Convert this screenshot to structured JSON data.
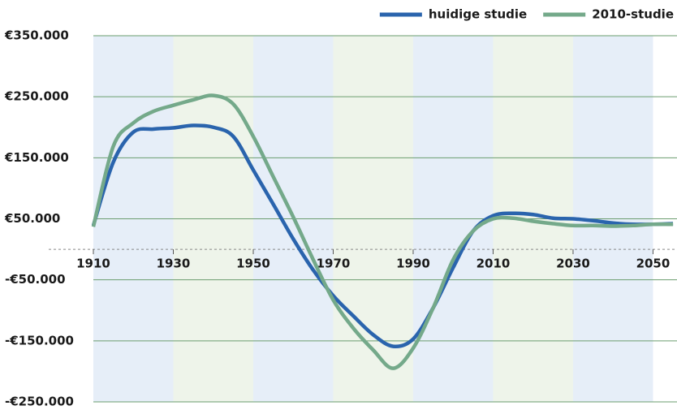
{
  "chart_data": {
    "type": "line",
    "x": [
      1910,
      1915,
      1920,
      1925,
      1930,
      1935,
      1940,
      1945,
      1950,
      1955,
      1960,
      1965,
      1970,
      1975,
      1980,
      1985,
      1990,
      1995,
      2000,
      2005,
      2010,
      2015,
      2020,
      2025,
      2030,
      2035,
      2040,
      2045,
      2050,
      2055
    ],
    "series": [
      {
        "name": "huidige studie",
        "color": "#2a64ad",
        "values": [
          39000,
          143000,
          192000,
          197000,
          199000,
          203000,
          200000,
          185000,
          130000,
          74000,
          17000,
          -34000,
          -76000,
          -109000,
          -140000,
          -159000,
          -147000,
          -96000,
          -30000,
          30000,
          55000,
          59000,
          57000,
          51000,
          50000,
          47000,
          43000,
          41000,
          41000,
          42000
        ]
      },
      {
        "name": "2010-studie",
        "color": "#74a98a",
        "values": [
          37000,
          169000,
          207000,
          226000,
          236000,
          245000,
          252000,
          238000,
          185000,
          119000,
          53000,
          -17000,
          -83000,
          -129000,
          -165000,
          -195000,
          -162000,
          -96000,
          -17000,
          30000,
          50000,
          51000,
          46000,
          42000,
          39000,
          39000,
          38000,
          39000,
          41000,
          41000
        ]
      }
    ],
    "xlim": [
      1910,
      2056
    ],
    "xticks": [
      1910,
      1930,
      1950,
      1970,
      1990,
      2010,
      2030,
      2050
    ],
    "ylim": [
      -250000,
      350000
    ],
    "yticks": [
      {
        "value": 350000,
        "label": "€350.000"
      },
      {
        "value": 250000,
        "label": "€250.000"
      },
      {
        "value": 150000,
        "label": "€150.000"
      },
      {
        "value": 50000,
        "label": "€50.000"
      },
      {
        "value": -50000,
        "label": "-€50.000"
      },
      {
        "value": -150000,
        "label": "-€150.000"
      },
      {
        "value": -250000,
        "label": "-€250.000"
      }
    ],
    "grid": true,
    "legend": "top-right"
  }
}
